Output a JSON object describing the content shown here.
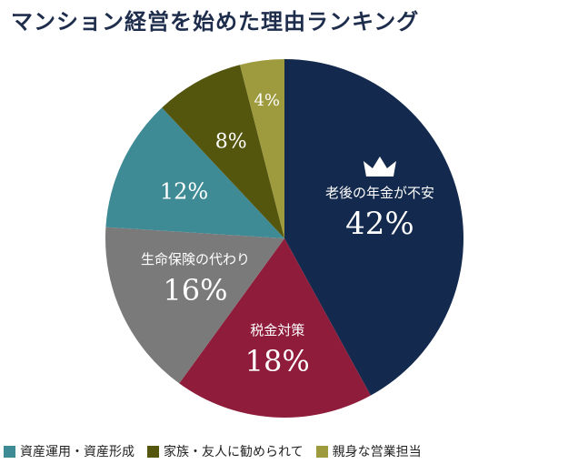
{
  "chart_data": {
    "type": "pie",
    "title": "マンション経営を始めた理由ランキング",
    "slices": [
      {
        "label": "老後の年金が不安",
        "value": 42,
        "value_text": "42%",
        "color": "#13294d",
        "icon": "crown-icon"
      },
      {
        "label": "税金対策",
        "value": 18,
        "value_text": "18%",
        "color": "#8e1c3a"
      },
      {
        "label": "生命保険の代わり",
        "value": 16,
        "value_text": "16%",
        "color": "#7a7a7a"
      },
      {
        "label": "",
        "value": 12,
        "value_text": "12%",
        "color": "#3e8b96"
      },
      {
        "label": "",
        "value": 8,
        "value_text": "8%",
        "color": "#55560e"
      },
      {
        "label": "",
        "value": 4,
        "value_text": "4%",
        "color": "#9e9a3e"
      }
    ],
    "legend": [
      {
        "label": "資産運用・資産形成",
        "color": "#3e8b96"
      },
      {
        "label": "家族・友人に勧められて",
        "color": "#55560e"
      },
      {
        "label": "親身な営業担当",
        "color": "#9e9a3e"
      }
    ],
    "legend_position": "bottom"
  }
}
